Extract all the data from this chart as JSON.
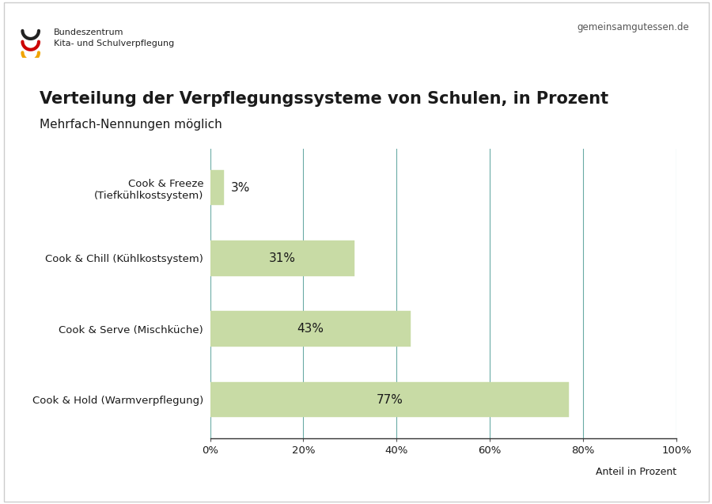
{
  "title": "Verteilung der Verpflegungssysteme von Schulen, in Prozent",
  "subtitle": "Mehrfach-Nennungen möglich",
  "categories": [
    "Cook & Hold (Warmverpflegung)",
    "Cook & Serve (Mischküche)",
    "Cook & Chill (Kühlkostsystem)",
    "Cook & Freeze\n(Tiefkühlkostsystem)"
  ],
  "values": [
    77,
    43,
    31,
    3
  ],
  "bar_color": "#c8dba5",
  "bar_edgecolor": "#c8dba5",
  "label_color": "#1a1a1a",
  "grid_color": "#6aaba5",
  "axis_label": "Anteil in Prozent",
  "xlim": [
    0,
    100
  ],
  "xticks": [
    0,
    20,
    40,
    60,
    80,
    100
  ],
  "xtick_labels": [
    "0%",
    "20%",
    "40%",
    "60%",
    "80%",
    "100%"
  ],
  "background_color": "#ffffff",
  "outer_border_color": "#cccccc",
  "header_text": "gemeinsamgutessen.de",
  "header_logo_text": "Bundeszentrum\nKita- und Schulverpflegung",
  "title_fontsize": 15,
  "subtitle_fontsize": 11,
  "ylabel_fontsize": 9.5,
  "value_fontsize": 11,
  "axis_label_fontsize": 9,
  "xtick_fontsize": 9.5,
  "bar_height": 0.5,
  "logo_colors": [
    "#222222",
    "#cc0000",
    "#f0a500"
  ]
}
